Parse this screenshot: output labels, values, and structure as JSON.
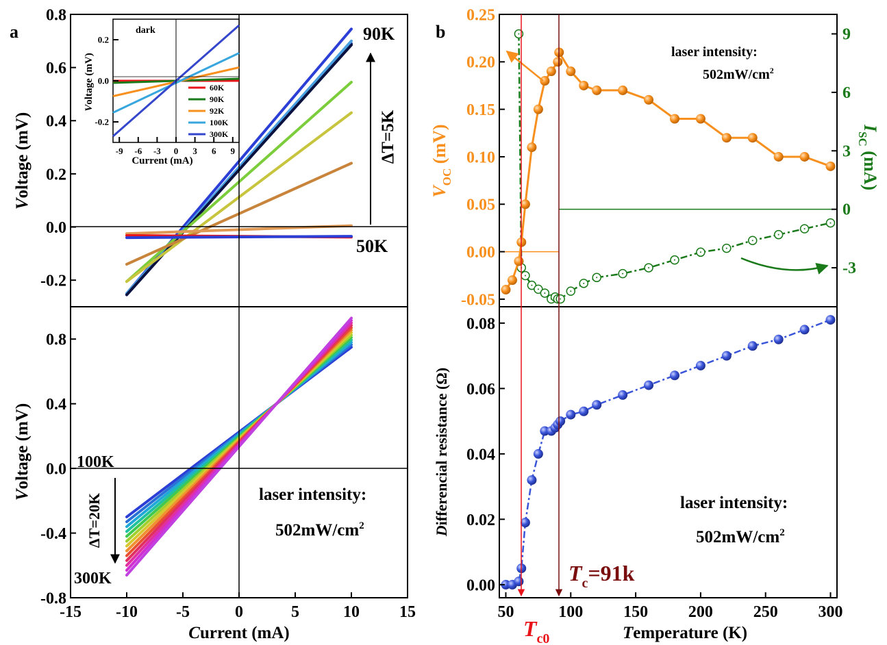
{
  "colors": {
    "axis": "#000000",
    "voc": "#f7901e",
    "isc": "#1a7a1a",
    "resistance": "#3b55d9",
    "tc0": "#e8141a",
    "tc": "#7a0e0e"
  },
  "panel_labels": {
    "a": "a",
    "b": "b"
  },
  "annotations": {
    "temp_90k": "90K",
    "temp_50k": "50K",
    "delta_t_5k": "ΔT=5K",
    "temp_100k": "100K",
    "temp_300k": "300K",
    "delta_t_20k": "ΔT=20K",
    "laser_line1": "laser intensity:",
    "laser_line2": "502mW/cm",
    "laser_sup": "2",
    "dark": "dark",
    "tc0_main": "T",
    "tc0_sub": "c0",
    "tc_main": "T",
    "tc_sub": "c",
    "tc_value": "=91k"
  },
  "chart_data": [
    {
      "id": "a-top",
      "type": "line",
      "ylabel_italic": "V",
      "ylabel_rest": "oltage (mV)",
      "xlim": [
        -15,
        15
      ],
      "ylim": [
        -0.3,
        0.8
      ],
      "yticks": [
        "-0.2",
        "0.0",
        "0.2",
        "0.4",
        "0.6",
        "0.8"
      ],
      "ytick_values": [
        -0.2,
        0.0,
        0.2,
        0.4,
        0.6,
        0.8
      ],
      "series": [
        {
          "color": "#2b3fd6",
          "x": [
            -10,
            10
          ],
          "y": [
            -0.25,
            0.745
          ]
        },
        {
          "color": "#1a2c9a",
          "x": [
            -10,
            10
          ],
          "y": [
            -0.255,
            0.69
          ]
        },
        {
          "color": "#4aa0e0",
          "x": [
            -10,
            10
          ],
          "y": [
            -0.25,
            0.7
          ]
        },
        {
          "color": "#0c1240",
          "x": [
            -10,
            10
          ],
          "y": [
            -0.255,
            0.685
          ]
        },
        {
          "color": "#7ccd3c",
          "x": [
            -10,
            10
          ],
          "y": [
            -0.205,
            0.545
          ]
        },
        {
          "color": "#c7c43e",
          "x": [
            -10,
            10
          ],
          "y": [
            -0.205,
            0.43
          ]
        },
        {
          "color": "#c8843a",
          "x": [
            -10,
            10
          ],
          "y": [
            -0.14,
            0.24
          ]
        },
        {
          "color": "#e09a55",
          "x": [
            -10,
            10
          ],
          "y": [
            -0.025,
            0.005
          ]
        },
        {
          "color": "#e8141a",
          "x": [
            -10,
            10
          ],
          "y": [
            -0.032,
            -0.038
          ]
        },
        {
          "color": "#2b3fd6",
          "x": [
            -10,
            10
          ],
          "y": [
            -0.04,
            -0.035
          ]
        }
      ]
    },
    {
      "id": "a-inset",
      "type": "line",
      "xlabel": "Current (mA)",
      "ylabel_italic": "V",
      "ylabel_rest": "oltage (mV)",
      "xlim": [
        -10,
        10
      ],
      "ylim": [
        -0.3,
        0.3
      ],
      "xticks": [
        "-9",
        "-6",
        "-3",
        "0",
        "3",
        "6",
        "9"
      ],
      "xtick_values": [
        -9,
        -6,
        -3,
        0,
        3,
        6,
        9
      ],
      "yticks": [
        "-0.2",
        "0.0",
        "0.2"
      ],
      "ytick_values": [
        -0.2,
        0.0,
        0.2
      ],
      "series": [
        {
          "name": "60K",
          "color": "#e8141a",
          "x": [
            -10,
            10
          ],
          "y": [
            0.0,
            0.0
          ]
        },
        {
          "name": "90K",
          "color": "#1a7a1a",
          "x": [
            -10,
            10
          ],
          "y": [
            -0.01,
            0.01
          ]
        },
        {
          "name": "92K",
          "color": "#f7901e",
          "x": [
            -10,
            10
          ],
          "y": [
            -0.075,
            0.065
          ]
        },
        {
          "name": "100K",
          "color": "#37a6de",
          "x": [
            -10,
            10
          ],
          "y": [
            -0.155,
            0.135
          ]
        },
        {
          "name": "300K",
          "color": "#3346cc",
          "x": [
            -10,
            10
          ],
          "y": [
            -0.27,
            0.27
          ]
        }
      ]
    },
    {
      "id": "a-bottom",
      "type": "line",
      "xlabel_italic": "C",
      "xlabel_rest": "urrent (mA)",
      "ylabel_italic": "V",
      "ylabel_rest": "oltage (mV)",
      "xlim": [
        -15,
        15
      ],
      "ylim": [
        -0.8,
        1.0
      ],
      "xticks": [
        "-15",
        "-10",
        "-5",
        "0",
        "5",
        "10",
        "15"
      ],
      "xtick_values": [
        -15,
        -10,
        -5,
        0,
        5,
        10,
        15
      ],
      "yticks": [
        "-0.8",
        "-0.4",
        "0.0",
        "0.4",
        "0.8"
      ],
      "ytick_values": [
        -0.8,
        -0.4,
        0.0,
        0.4,
        0.8
      ],
      "series": [
        {
          "color": "#2b3fd6",
          "x": [
            -10,
            10
          ],
          "y": [
            -0.3,
            0.75
          ]
        },
        {
          "color": "#2a72d6",
          "x": [
            -10,
            10
          ],
          "y": [
            -0.33,
            0.765
          ]
        },
        {
          "color": "#22a8d8",
          "x": [
            -10,
            10
          ],
          "y": [
            -0.36,
            0.78
          ]
        },
        {
          "color": "#20c0a0",
          "x": [
            -10,
            10
          ],
          "y": [
            -0.39,
            0.795
          ]
        },
        {
          "color": "#40c850",
          "x": [
            -10,
            10
          ],
          "y": [
            -0.42,
            0.81
          ]
        },
        {
          "color": "#a0d030",
          "x": [
            -10,
            10
          ],
          "y": [
            -0.45,
            0.825
          ]
        },
        {
          "color": "#d8c830",
          "x": [
            -10,
            10
          ],
          "y": [
            -0.48,
            0.84
          ]
        },
        {
          "color": "#f09030",
          "x": [
            -10,
            10
          ],
          "y": [
            -0.51,
            0.855
          ]
        },
        {
          "color": "#e85030",
          "x": [
            -10,
            10
          ],
          "y": [
            -0.54,
            0.87
          ]
        },
        {
          "color": "#e03060",
          "x": [
            -10,
            10
          ],
          "y": [
            -0.57,
            0.885
          ]
        },
        {
          "color": "#e030a0",
          "x": [
            -10,
            10
          ],
          "y": [
            -0.6,
            0.9
          ]
        },
        {
          "color": "#d030d0",
          "x": [
            -10,
            10
          ],
          "y": [
            -0.63,
            0.915
          ]
        },
        {
          "color": "#c040e0",
          "x": [
            -10,
            10
          ],
          "y": [
            -0.66,
            0.93
          ]
        }
      ]
    },
    {
      "id": "b-top",
      "type": "line",
      "ylabel_italic": "V",
      "ylabel_sub": "OC",
      "ylabel_rest": " (mV)",
      "y2label_italic": "I",
      "y2label_sub": "SC",
      "y2label_rest": " (mA)",
      "xlim": [
        45,
        305
      ],
      "ylim": [
        -0.058,
        0.25
      ],
      "y2lim": [
        -5.0,
        10.0
      ],
      "yticks": [
        "-0.05",
        "0.00",
        "0.05",
        "0.10",
        "0.15",
        "0.20",
        "0.25"
      ],
      "ytick_values": [
        -0.05,
        0.0,
        0.05,
        0.1,
        0.15,
        0.2,
        0.25
      ],
      "y2ticks": [
        "-3",
        "0",
        "3",
        "6",
        "9"
      ],
      "y2tick_values": [
        -3,
        0,
        3,
        6,
        9
      ],
      "voc": {
        "x": [
          50,
          55,
          60,
          62,
          65,
          70,
          75,
          80,
          85,
          90,
          91,
          100,
          110,
          120,
          140,
          160,
          180,
          200,
          220,
          240,
          260,
          280,
          300
        ],
        "y": [
          -0.04,
          -0.03,
          -0.01,
          0.01,
          0.05,
          0.11,
          0.15,
          0.18,
          0.19,
          0.2,
          0.21,
          0.19,
          0.175,
          0.17,
          0.17,
          0.16,
          0.14,
          0.14,
          0.12,
          0.12,
          0.1,
          0.1,
          0.09
        ]
      },
      "isc": {
        "x": [
          60,
          62,
          65,
          70,
          75,
          80,
          85,
          88,
          90,
          92,
          100,
          110,
          120,
          140,
          160,
          180,
          200,
          220,
          240,
          260,
          280,
          300
        ],
        "y": [
          9.0,
          -3.0,
          -3.4,
          -3.9,
          -4.1,
          -4.3,
          -4.6,
          -4.5,
          -4.6,
          -4.6,
          -4.2,
          -3.8,
          -3.5,
          -3.3,
          -3.0,
          -2.6,
          -2.2,
          -2.0,
          -1.6,
          -1.3,
          -1.0,
          -0.7
        ]
      }
    },
    {
      "id": "b-bottom",
      "type": "line",
      "xlabel_italic": "T",
      "xlabel_rest": "emperature (K)",
      "ylabel_italic": "D",
      "ylabel_rest": "ifferencial resistance (Ω)",
      "xlim": [
        45,
        305
      ],
      "ylim": [
        -0.004,
        0.085
      ],
      "xticks": [
        "50",
        "100",
        "150",
        "200",
        "250",
        "300"
      ],
      "xtick_values": [
        50,
        100,
        150,
        200,
        250,
        300
      ],
      "yticks": [
        "0.00",
        "0.02",
        "0.04",
        "0.06",
        "0.08"
      ],
      "ytick_values": [
        0.0,
        0.02,
        0.04,
        0.06,
        0.08
      ],
      "series": [
        {
          "x": [
            50,
            55,
            60,
            62,
            65,
            70,
            75,
            80,
            85,
            88,
            90,
            92,
            100,
            110,
            120,
            140,
            160,
            180,
            200,
            220,
            240,
            260,
            280,
            300
          ],
          "y": [
            0.0,
            0.0,
            0.001,
            0.005,
            0.019,
            0.032,
            0.04,
            0.047,
            0.047,
            0.048,
            0.049,
            0.05,
            0.052,
            0.053,
            0.055,
            0.058,
            0.061,
            0.064,
            0.067,
            0.07,
            0.073,
            0.075,
            0.078,
            0.081
          ]
        }
      ]
    }
  ]
}
